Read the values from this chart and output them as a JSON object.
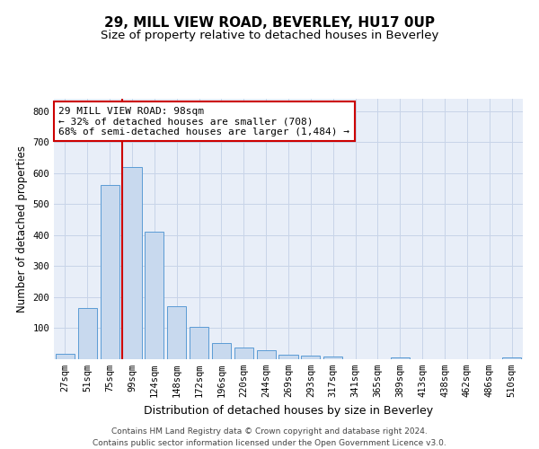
{
  "title": "29, MILL VIEW ROAD, BEVERLEY, HU17 0UP",
  "subtitle": "Size of property relative to detached houses in Beverley",
  "xlabel": "Distribution of detached houses by size in Beverley",
  "ylabel": "Number of detached properties",
  "bar_color": "#c8d9ee",
  "bar_edge_color": "#5b9bd5",
  "grid_color": "#c8d4e8",
  "bg_color": "#e8eef8",
  "categories": [
    "27sqm",
    "51sqm",
    "75sqm",
    "99sqm",
    "124sqm",
    "148sqm",
    "172sqm",
    "196sqm",
    "220sqm",
    "244sqm",
    "269sqm",
    "293sqm",
    "317sqm",
    "341sqm",
    "365sqm",
    "389sqm",
    "413sqm",
    "438sqm",
    "462sqm",
    "486sqm",
    "510sqm"
  ],
  "values": [
    18,
    165,
    563,
    619,
    412,
    172,
    103,
    51,
    38,
    30,
    14,
    13,
    10,
    0,
    0,
    7,
    0,
    0,
    0,
    0,
    7
  ],
  "annotation_text": "29 MILL VIEW ROAD: 98sqm\n← 32% of detached houses are smaller (708)\n68% of semi-detached houses are larger (1,484) →",
  "annotation_box_color": "#cc0000",
  "vline_color": "#cc0000",
  "vline_x": 3.0,
  "ylim": [
    0,
    840
  ],
  "yticks": [
    0,
    100,
    200,
    300,
    400,
    500,
    600,
    700,
    800
  ],
  "footer_text": "Contains HM Land Registry data © Crown copyright and database right 2024.\nContains public sector information licensed under the Open Government Licence v3.0.",
  "title_fontsize": 11,
  "subtitle_fontsize": 9.5,
  "xlabel_fontsize": 9,
  "ylabel_fontsize": 8.5,
  "tick_fontsize": 7.5,
  "annotation_fontsize": 8,
  "footer_fontsize": 6.5
}
